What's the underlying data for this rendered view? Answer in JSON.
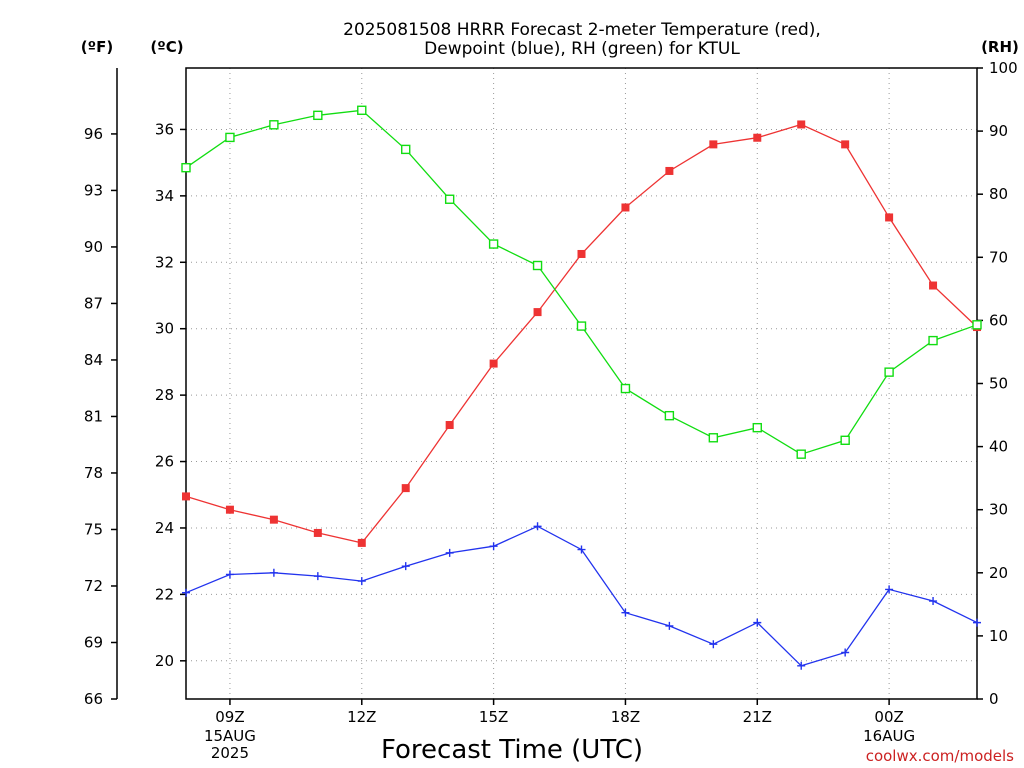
{
  "title_lines": [
    "2025081508 HRRR Forecast 2-meter Temperature (red),",
    "Dewpoint (blue), RH (green) for KTUL"
  ],
  "units": {
    "f": "(ºF)",
    "c": "(ºC)",
    "rh": "(RH)"
  },
  "xlabel": "Forecast Time (UTC)",
  "credit": "coolwx.com/models",
  "xticks": [
    {
      "label": "09Z",
      "sub": [
        "15AUG",
        "2025"
      ]
    },
    {
      "label": "12Z",
      "sub": []
    },
    {
      "label": "15Z",
      "sub": []
    },
    {
      "label": "18Z",
      "sub": []
    },
    {
      "label": "21Z",
      "sub": []
    },
    {
      "label": "00Z",
      "sub": [
        "16AUG"
      ]
    }
  ],
  "colors": {
    "temperature": "#ee3333",
    "dewpoint": "#2233ee",
    "rh": "#11dd11",
    "grid": "#999999"
  },
  "chart_data": {
    "type": "line",
    "x": [
      "08Z",
      "09Z",
      "10Z",
      "11Z",
      "12Z",
      "13Z",
      "14Z",
      "15Z",
      "16Z",
      "17Z",
      "18Z",
      "19Z",
      "20Z",
      "21Z",
      "22Z",
      "23Z",
      "00Z",
      "01Z",
      "02Z"
    ],
    "x_tick_positions": [
      "09Z",
      "12Z",
      "15Z",
      "18Z",
      "21Z",
      "00Z"
    ],
    "ylim_c": [
      18.85,
      37.85
    ],
    "yticks_c": [
      20,
      22,
      24,
      26,
      28,
      30,
      32,
      34,
      36
    ],
    "ylim_f": [
      66,
      99.5
    ],
    "yticks_f": [
      66,
      69,
      72,
      75,
      78,
      81,
      84,
      87,
      90,
      93,
      96
    ],
    "ylim_rh": [
      0,
      100
    ],
    "yticks_rh": [
      0,
      10,
      20,
      30,
      40,
      50,
      60,
      70,
      80,
      90,
      100
    ],
    "grid": true,
    "series": [
      {
        "key": "temperature",
        "axis": "c",
        "marker": "filled-square",
        "values": [
          24.95,
          24.55,
          24.25,
          23.85,
          23.55,
          25.2,
          27.1,
          28.95,
          30.5,
          32.25,
          33.65,
          34.75,
          35.55,
          35.75,
          36.15,
          35.55,
          33.35,
          31.3,
          30.05
        ]
      },
      {
        "key": "dewpoint",
        "axis": "c",
        "marker": "plus",
        "values": [
          22.05,
          22.6,
          22.65,
          22.55,
          22.4,
          22.85,
          23.25,
          23.45,
          24.05,
          23.35,
          21.45,
          21.05,
          20.5,
          21.15,
          19.85,
          20.25,
          22.15,
          21.8,
          21.15
        ]
      },
      {
        "key": "rh",
        "axis": "rh",
        "marker": "open-square",
        "values": [
          84.2,
          89.0,
          91.0,
          92.5,
          93.3,
          87.1,
          79.2,
          72.1,
          68.7,
          59.1,
          49.2,
          44.9,
          41.4,
          43.0,
          38.8,
          41.0,
          51.8,
          56.8,
          59.3
        ]
      }
    ]
  }
}
